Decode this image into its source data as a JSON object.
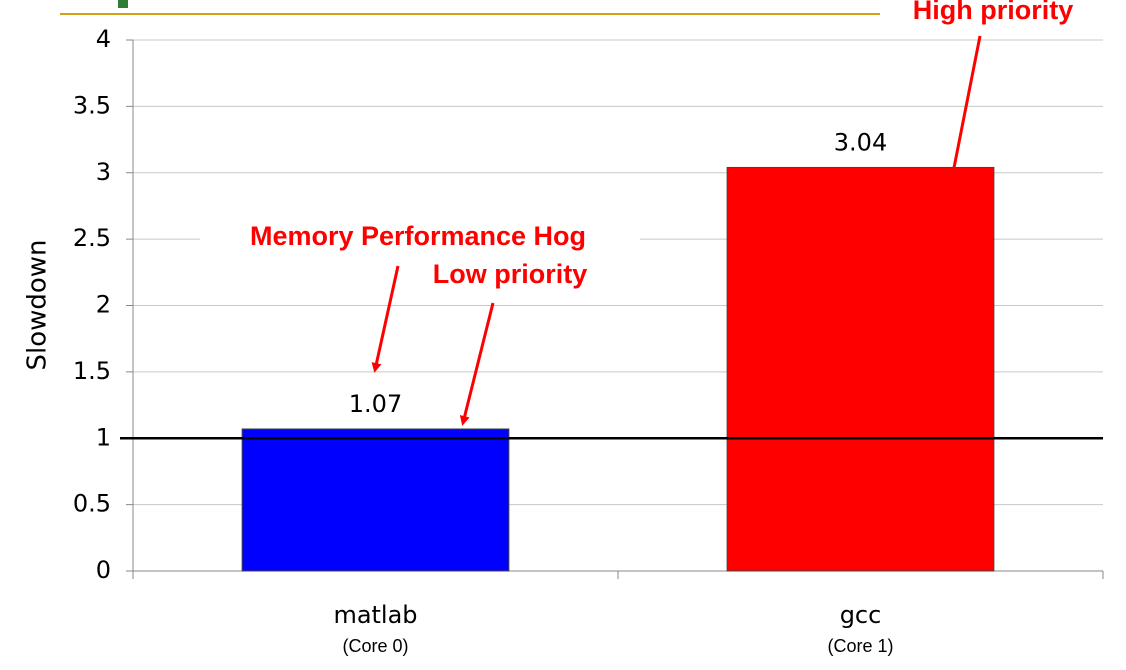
{
  "chart_data": {
    "type": "bar",
    "y_label": "Slowdown",
    "categories": [
      "matlab",
      "gcc"
    ],
    "subcategories": [
      "(Core 0)",
      "(Core 1)"
    ],
    "values": [
      1.07,
      3.04
    ],
    "colors": [
      "#0000ff",
      "#ff0000"
    ],
    "ylim": [
      0,
      4
    ],
    "yticks": [
      0,
      0.5,
      1,
      1.5,
      2,
      2.5,
      3,
      3.5,
      4
    ],
    "grid": true,
    "reference_line": 1,
    "annotations": [
      "Memory Performance Hog",
      "Low priority",
      "High priority"
    ]
  }
}
